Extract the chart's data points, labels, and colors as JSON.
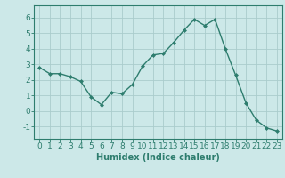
{
  "x": [
    0,
    1,
    2,
    3,
    4,
    5,
    6,
    7,
    8,
    9,
    10,
    11,
    12,
    13,
    14,
    15,
    16,
    17,
    18,
    19,
    20,
    21,
    22,
    23
  ],
  "y": [
    2.8,
    2.4,
    2.4,
    2.2,
    1.9,
    0.9,
    0.4,
    1.2,
    1.1,
    1.7,
    2.9,
    3.6,
    3.7,
    4.4,
    5.2,
    5.9,
    5.5,
    5.9,
    4.0,
    2.3,
    0.5,
    -0.6,
    -1.1,
    -1.3
  ],
  "line_color": "#2e7d6e",
  "marker": "D",
  "marker_size": 2.0,
  "xlabel": "Humidex (Indice chaleur)",
  "ylim": [
    -1.8,
    6.8
  ],
  "xlim": [
    -0.5,
    23.5
  ],
  "yticks": [
    -1,
    0,
    1,
    2,
    3,
    4,
    5,
    6
  ],
  "xticks": [
    0,
    1,
    2,
    3,
    4,
    5,
    6,
    7,
    8,
    9,
    10,
    11,
    12,
    13,
    14,
    15,
    16,
    17,
    18,
    19,
    20,
    21,
    22,
    23
  ],
  "bg_color": "#cce8e8",
  "grid_color": "#aacccc",
  "line_width": 1.0,
  "xlabel_fontsize": 7,
  "tick_fontsize": 6.5
}
